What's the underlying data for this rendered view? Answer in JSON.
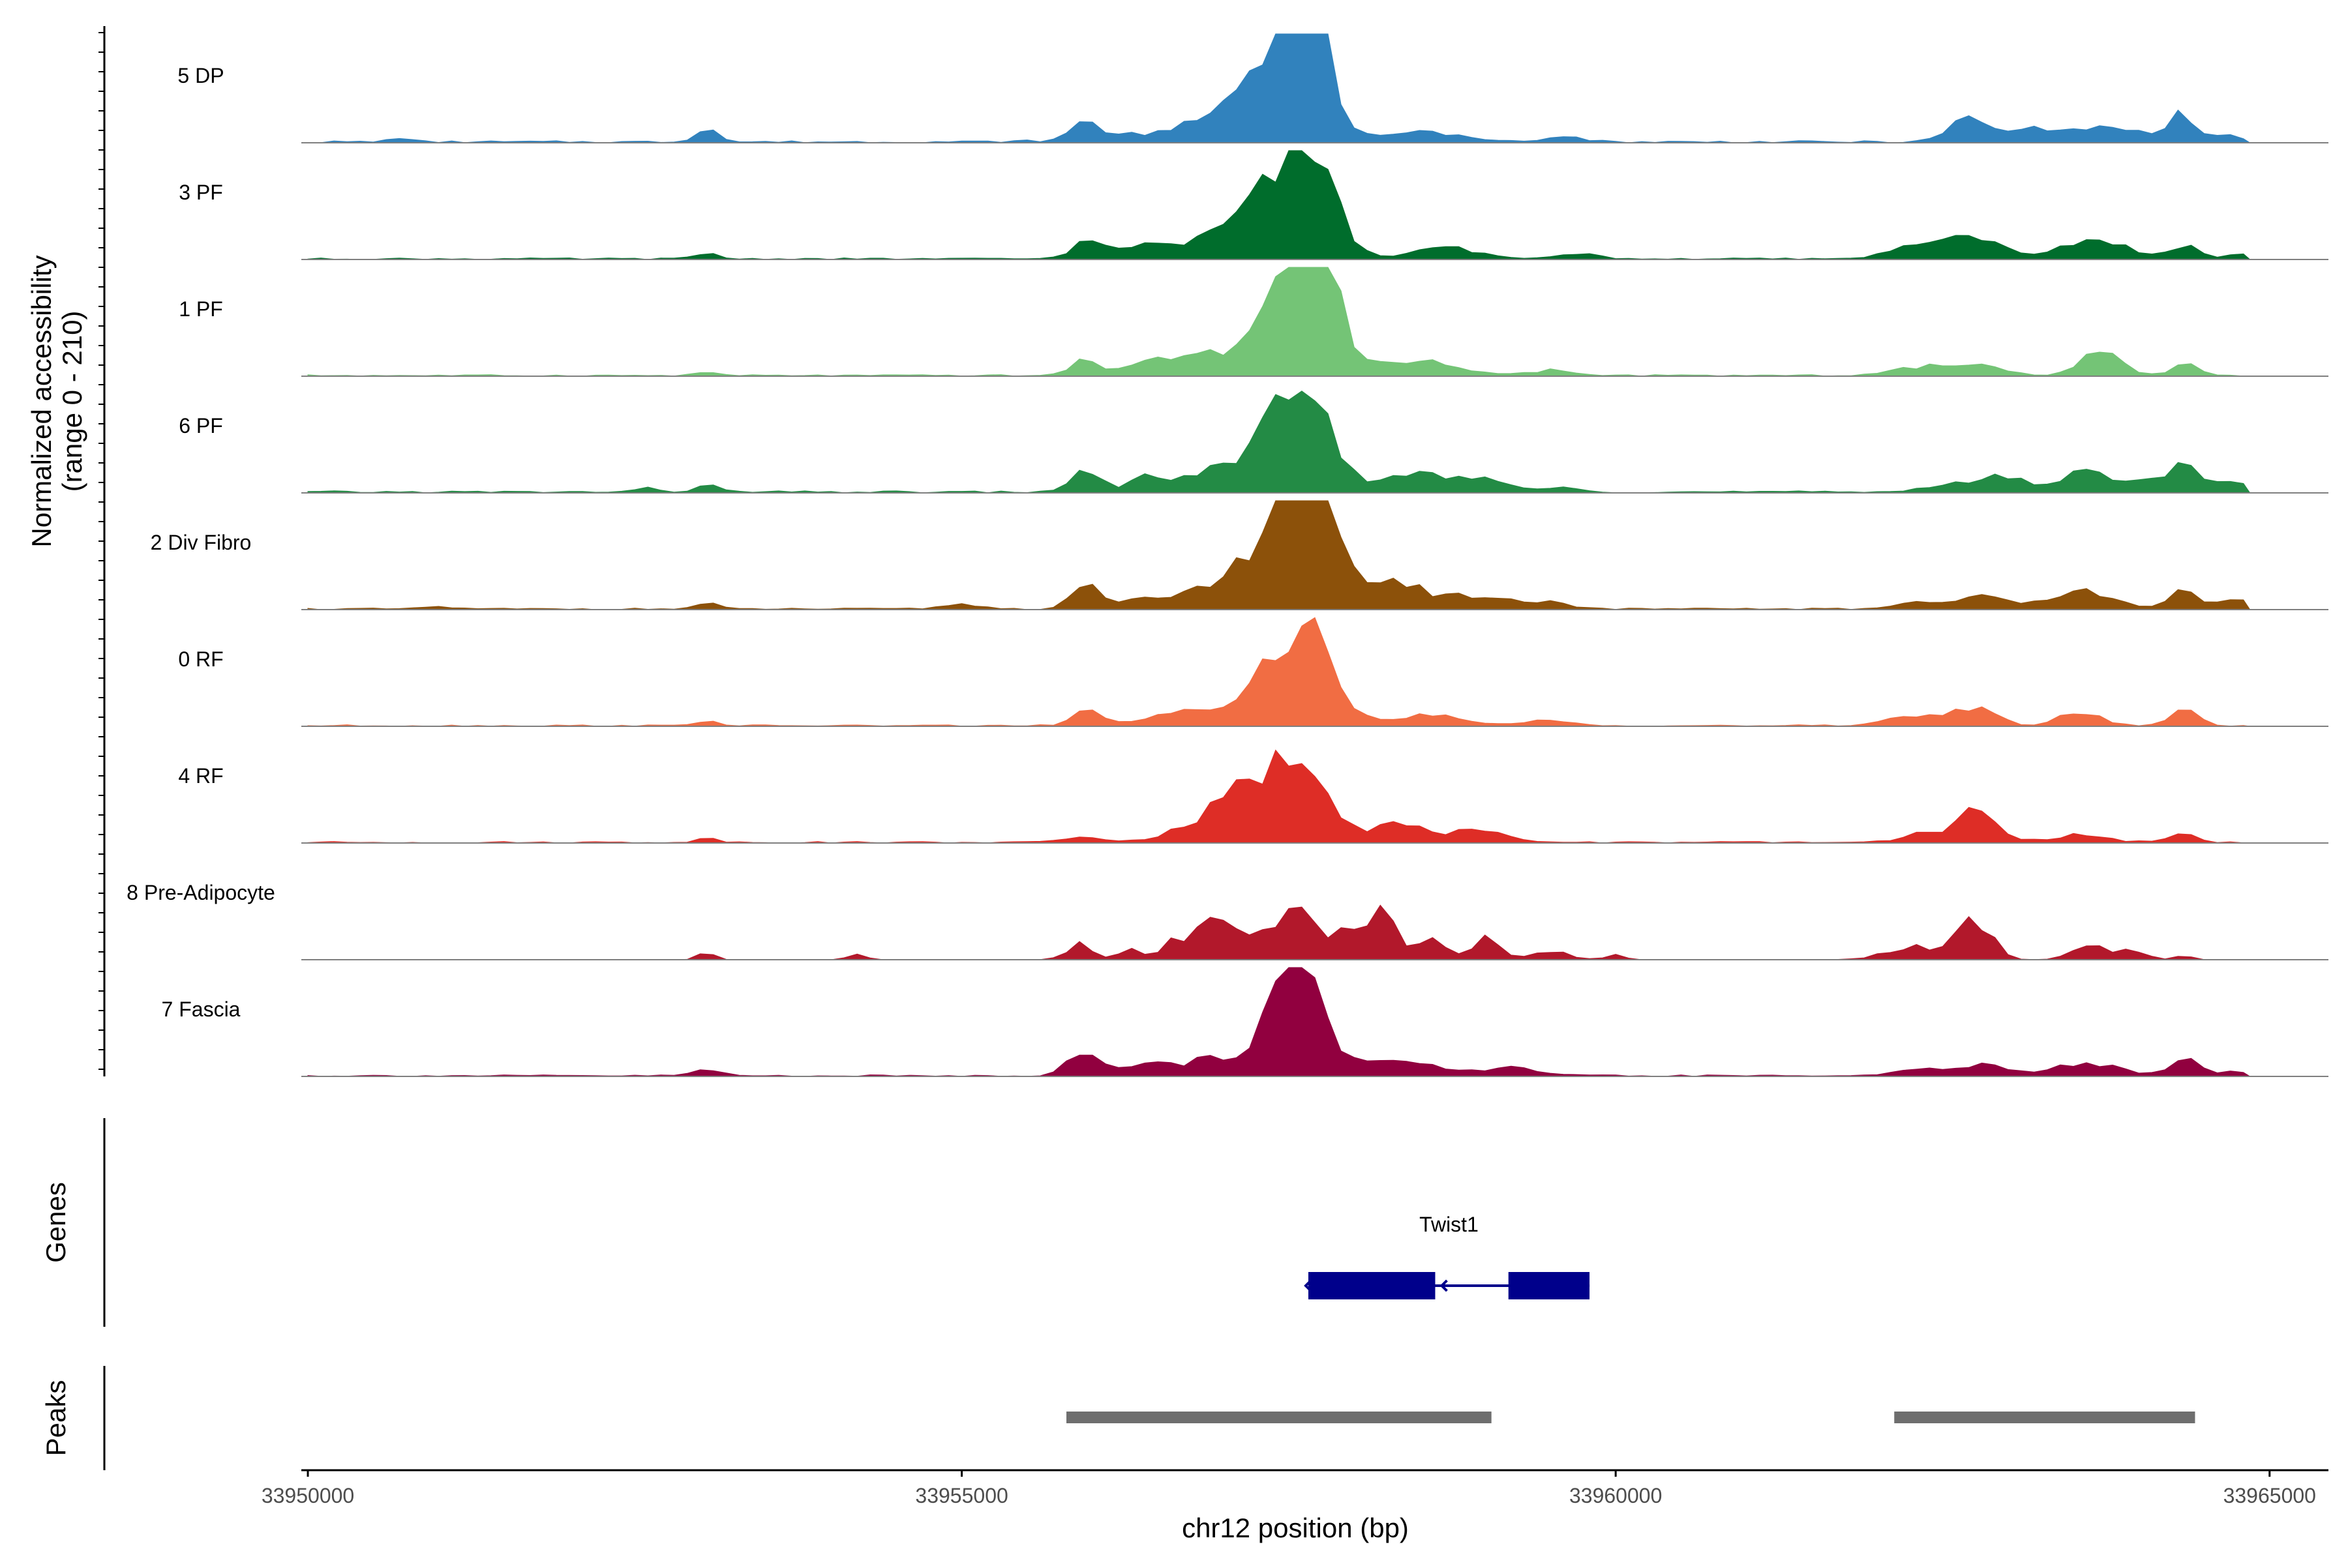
{
  "chart_data": {
    "type": "area",
    "chromosome": "chr12",
    "xlabel": "chr12 position (bp)",
    "xlim": [
      33949950,
      33965450
    ],
    "x_ticks": [
      33950000,
      33955000,
      33960000,
      33965000
    ],
    "x_tick_labels": [
      "33950000",
      "33955000",
      "33960000",
      "33965000"
    ],
    "coverage_panel": {
      "ylabel": "Normalized accessibility",
      "ylabel_range": "(range 0 - 210)",
      "ylim": [
        0,
        210
      ],
      "bin_size_bp": 100
    },
    "series": [
      {
        "name": "5 DP",
        "color": "#3182BD",
        "baseline": 4,
        "peaks": [
          [
            33950700,
            8,
            70
          ],
          [
            33953050,
            28,
            80
          ],
          [
            33955950,
            35,
            100
          ],
          [
            33957100,
            30,
            650
          ],
          [
            33957400,
            110,
            300
          ],
          [
            33957500,
            160,
            150
          ],
          [
            33957700,
            150,
            120
          ],
          [
            33958600,
            18,
            200
          ],
          [
            33959600,
            10,
            150
          ],
          [
            33962700,
            45,
            140
          ],
          [
            33963050,
            20,
            160
          ],
          [
            33963550,
            30,
            250
          ],
          [
            33964350,
            40,
            100
          ],
          [
            33964100,
            18,
            250
          ],
          [
            33964700,
            12,
            100
          ]
        ]
      },
      {
        "name": "3 PF",
        "color": "#006D2C",
        "baseline": 3,
        "peaks": [
          [
            33953050,
            12,
            80
          ],
          [
            33955950,
            28,
            120
          ],
          [
            33956350,
            18,
            180
          ],
          [
            33957100,
            45,
            400
          ],
          [
            33957500,
            125,
            260
          ],
          [
            33957700,
            115,
            150
          ],
          [
            33958700,
            22,
            220
          ],
          [
            33959700,
            10,
            150
          ],
          [
            33962300,
            25,
            200
          ],
          [
            33962750,
            45,
            200
          ],
          [
            33963650,
            38,
            250
          ],
          [
            33964350,
            28,
            100
          ],
          [
            33964800,
            8,
            150
          ]
        ]
      },
      {
        "name": "1 PF",
        "color": "#74C476",
        "baseline": 3,
        "peaks": [
          [
            33953050,
            6,
            80
          ],
          [
            33955950,
            28,
            100
          ],
          [
            33956500,
            15,
            200
          ],
          [
            33957150,
            35,
            500
          ],
          [
            33957500,
            90,
            280
          ],
          [
            33957650,
            165,
            150
          ],
          [
            33957800,
            110,
            120
          ],
          [
            33958500,
            25,
            300
          ],
          [
            33959500,
            10,
            150
          ],
          [
            33962300,
            15,
            200
          ],
          [
            33962750,
            18,
            200
          ],
          [
            33963700,
            45,
            150
          ],
          [
            33964350,
            22,
            100
          ]
        ]
      },
      {
        "name": "6 PF",
        "color": "#238B45",
        "baseline": 4,
        "peaks": [
          [
            33952600,
            6,
            100
          ],
          [
            33953050,
            15,
            80
          ],
          [
            33955950,
            40,
            100
          ],
          [
            33956400,
            25,
            150
          ],
          [
            33956950,
            40,
            250
          ],
          [
            33957450,
            145,
            200
          ],
          [
            33957700,
            140,
            150
          ],
          [
            33958400,
            35,
            300
          ],
          [
            33959000,
            20,
            200
          ],
          [
            33959600,
            10,
            150
          ],
          [
            33962700,
            22,
            250
          ],
          [
            33963050,
            20,
            160
          ],
          [
            33963600,
            40,
            150
          ],
          [
            33964100,
            25,
            200
          ],
          [
            33964350,
            50,
            100
          ],
          [
            33964750,
            20,
            150
          ]
        ]
      },
      {
        "name": "2 Div Fibro",
        "color": "#8C510A",
        "baseline": 3,
        "peaks": [
          [
            33951000,
            4,
            100
          ],
          [
            33953050,
            10,
            80
          ],
          [
            33955000,
            8,
            150
          ],
          [
            33955950,
            58,
            100
          ],
          [
            33956300,
            15,
            120
          ],
          [
            33957100,
            45,
            400
          ],
          [
            33957450,
            175,
            200
          ],
          [
            33957700,
            160,
            150
          ],
          [
            33958200,
            55,
            250
          ],
          [
            33958900,
            25,
            300
          ],
          [
            33959500,
            12,
            150
          ],
          [
            33962300,
            15,
            150
          ],
          [
            33962800,
            30,
            150
          ],
          [
            33963550,
            35,
            250
          ],
          [
            33964350,
            38,
            100
          ],
          [
            33964750,
            15,
            150
          ]
        ]
      },
      {
        "name": "0 RF",
        "color": "#F16D43",
        "baseline": 3,
        "peaks": [
          [
            33953050,
            10,
            80
          ],
          [
            33955950,
            28,
            100
          ],
          [
            33956900,
            30,
            400
          ],
          [
            33957500,
            130,
            230
          ],
          [
            33957750,
            90,
            150
          ],
          [
            33958500,
            20,
            300
          ],
          [
            33959500,
            10,
            150
          ],
          [
            33962300,
            20,
            200
          ],
          [
            33962750,
            35,
            150
          ],
          [
            33963550,
            30,
            150
          ],
          [
            33964350,
            30,
            100
          ]
        ]
      },
      {
        "name": "4 RF",
        "color": "#DE2D26",
        "baseline": 3,
        "peaks": [
          [
            33953050,
            10,
            80
          ],
          [
            33955950,
            10,
            150
          ],
          [
            33957050,
            60,
            300
          ],
          [
            33957450,
            110,
            250
          ],
          [
            33957700,
            90,
            150
          ],
          [
            33958300,
            35,
            200
          ],
          [
            33958900,
            20,
            250
          ],
          [
            33962300,
            15,
            150
          ],
          [
            33962750,
            60,
            150
          ],
          [
            33963550,
            15,
            200
          ],
          [
            33964350,
            15,
            100
          ]
        ]
      },
      {
        "name": "8 Pre-Adipocyte",
        "color": "#B2182B",
        "baseline": 0,
        "peaks": [
          [
            33953050,
            15,
            60
          ],
          [
            33954200,
            12,
            60
          ],
          [
            33955900,
            30,
            100
          ],
          [
            33956300,
            20,
            80
          ],
          [
            33956650,
            40,
            100
          ],
          [
            33956950,
            85,
            120
          ],
          [
            33957350,
            70,
            150
          ],
          [
            33957600,
            110,
            100
          ],
          [
            33957900,
            55,
            120
          ],
          [
            33958200,
            95,
            120
          ],
          [
            33958600,
            35,
            120
          ],
          [
            33959000,
            40,
            100
          ],
          [
            33959500,
            15,
            150
          ],
          [
            33960000,
            12,
            60
          ],
          [
            33962300,
            25,
            220
          ],
          [
            33962750,
            75,
            120
          ],
          [
            33963600,
            30,
            120
          ],
          [
            33963950,
            20,
            100
          ],
          [
            33964350,
            10,
            60
          ]
        ]
      },
      {
        "name": "7 Fascia",
        "color": "#91003F",
        "baseline": 3,
        "peaks": [
          [
            33953050,
            12,
            100
          ],
          [
            33955900,
            45,
            100
          ],
          [
            33956350,
            20,
            250
          ],
          [
            33957000,
            30,
            300
          ],
          [
            33957500,
            130,
            200
          ],
          [
            33957650,
            120,
            150
          ],
          [
            33958300,
            30,
            300
          ],
          [
            33959200,
            15,
            200
          ],
          [
            33962300,
            10,
            200
          ],
          [
            33962800,
            20,
            200
          ],
          [
            33963600,
            25,
            250
          ],
          [
            33964350,
            35,
            100
          ],
          [
            33964750,
            8,
            150
          ]
        ]
      }
    ],
    "genes": {
      "ylabel": "Genes",
      "items": [
        {
          "name": "Twist1",
          "start": 33957650,
          "end": 33959800,
          "strand": "-",
          "color": "#00008B",
          "exons": [
            [
              33957650,
              33958620
            ],
            [
              33959180,
              33959800
            ]
          ]
        }
      ]
    },
    "peaks_track": {
      "ylabel": "Peaks",
      "color": "#6E6E6E",
      "regions": [
        [
          33955800,
          33959050
        ],
        [
          33962130,
          33964430
        ]
      ]
    }
  }
}
